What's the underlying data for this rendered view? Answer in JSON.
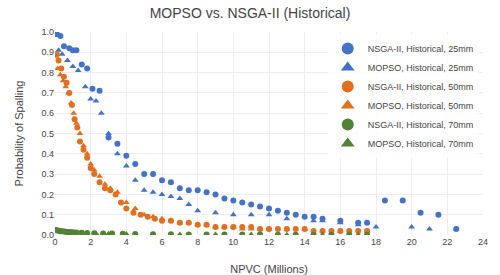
{
  "chart_data": {
    "type": "scatter",
    "title": "MOPSO vs. NSGA-II (Historical)",
    "xlabel": "NPVC (Millions)",
    "ylabel": "Probability of Spalling",
    "xlim": [
      0,
      24
    ],
    "ylim": [
      0,
      1.0
    ],
    "xticks": [
      0,
      2,
      4,
      6,
      8,
      10,
      12,
      14,
      16,
      18,
      20,
      22,
      24
    ],
    "yticks": [
      {
        "value": 0,
        "label": "0.0"
      },
      0.1,
      0.2,
      0.3,
      0.4,
      0.5,
      0.6,
      0.7,
      0.8,
      0.9,
      {
        "value": 1,
        "label": "1.0"
      }
    ],
    "grid": true,
    "legend": "upper right",
    "series": [
      {
        "name": "NSGA-II, Historical, 25mm",
        "marker": "circle",
        "color": "#4472C4",
        "x": [
          0.1,
          0.3,
          0.5,
          0.8,
          1.0,
          1.2,
          1.5,
          1.8,
          2.1,
          2.5,
          3.0,
          3.5,
          4.0,
          4.5,
          5.0,
          5.5,
          6.0,
          6.5,
          7.0,
          7.5,
          8.0,
          8.5,
          9.0,
          9.5,
          10.0,
          10.5,
          11.0,
          11.5,
          12.0,
          12.5,
          13.0,
          13.5,
          14.0,
          14.5,
          15.0,
          16.0,
          17.0,
          17.5,
          18.5,
          19.5,
          20.5,
          21.5,
          22.5
        ],
        "values": [
          0.99,
          0.98,
          0.93,
          0.92,
          0.91,
          0.91,
          0.84,
          0.82,
          0.72,
          0.71,
          0.48,
          0.45,
          0.39,
          0.35,
          0.3,
          0.3,
          0.27,
          0.26,
          0.23,
          0.22,
          0.22,
          0.21,
          0.2,
          0.18,
          0.17,
          0.16,
          0.15,
          0.14,
          0.13,
          0.12,
          0.11,
          0.1,
          0.09,
          0.09,
          0.08,
          0.07,
          0.06,
          0.06,
          0.17,
          0.17,
          0.11,
          0.1,
          0.03
        ]
      },
      {
        "name": "MOPSO, Historical, 25mm",
        "marker": "triangle-up",
        "color": "#4472C4",
        "x": [
          0.05,
          0.2,
          0.4,
          0.7,
          1.0,
          1.3,
          1.7,
          2.0,
          2.3,
          2.6,
          3.0,
          3.5,
          4.0,
          4.5,
          5.0,
          5.5,
          6.0,
          6.5,
          7.0,
          7.5,
          8.0,
          9.0,
          10.0,
          11.0,
          12.0,
          13.0,
          14.5,
          15.0,
          16.0,
          17.0,
          18.0,
          20.0,
          21.0,
          22.5
        ],
        "values": [
          0.985,
          0.91,
          0.89,
          0.86,
          0.83,
          0.81,
          0.73,
          0.67,
          0.66,
          0.6,
          0.5,
          0.4,
          0.34,
          0.27,
          0.22,
          0.21,
          0.2,
          0.19,
          0.18,
          0.15,
          0.12,
          0.11,
          0.1,
          0.1,
          0.1,
          0.08,
          0.07,
          0.07,
          0.06,
          0.05,
          0.04,
          0.04,
          0.03,
          0.03
        ]
      },
      {
        "name": "NSGA-II, Historical, 50mm",
        "marker": "circle",
        "color": "#E07020",
        "x": [
          0.1,
          0.2,
          0.35,
          0.5,
          0.65,
          0.8,
          0.95,
          1.1,
          1.25,
          1.4,
          1.6,
          1.8,
          2.0,
          2.2,
          2.5,
          2.8,
          3.1,
          3.4,
          3.7,
          4.0,
          4.4,
          4.8,
          5.2,
          5.6,
          6.0,
          6.5,
          7.0,
          7.5,
          8.0,
          8.5,
          9.0,
          9.5,
          10.0,
          10.5,
          11.0,
          11.5,
          12.0,
          12.5,
          13.0,
          13.5,
          14.0,
          14.5,
          15.0,
          15.5,
          16.0,
          16.5,
          17.0,
          17.5
        ],
        "values": [
          0.89,
          0.86,
          0.82,
          0.78,
          0.75,
          0.7,
          0.64,
          0.57,
          0.53,
          0.46,
          0.42,
          0.38,
          0.33,
          0.3,
          0.26,
          0.23,
          0.22,
          0.2,
          0.16,
          0.13,
          0.11,
          0.1,
          0.09,
          0.08,
          0.07,
          0.07,
          0.06,
          0.06,
          0.05,
          0.05,
          0.04,
          0.04,
          0.04,
          0.04,
          0.04,
          0.03,
          0.03,
          0.03,
          0.03,
          0.03,
          0.03,
          0.02,
          0.02,
          0.02,
          0.02,
          0.02,
          0.02,
          0.02
        ]
      },
      {
        "name": "MOPSO, Historical, 50mm",
        "marker": "triangle-up",
        "color": "#E07020",
        "x": [
          0.05,
          0.15,
          0.3,
          0.45,
          0.6,
          0.75,
          0.9,
          1.05,
          1.2,
          1.4,
          1.6,
          1.8,
          2.0,
          2.2,
          2.5,
          2.8,
          3.1,
          3.5,
          4.0,
          4.5,
          5.0,
          5.5,
          6.0,
          6.5,
          7.0,
          7.5,
          8.0,
          8.5,
          9.0,
          9.5,
          10.0,
          10.5,
          11.0,
          11.5,
          12.0,
          13.0,
          14.0,
          15.0,
          16.0,
          17.5
        ],
        "values": [
          0.88,
          0.82,
          0.79,
          0.76,
          0.73,
          0.7,
          0.65,
          0.6,
          0.55,
          0.5,
          0.44,
          0.4,
          0.35,
          0.32,
          0.29,
          0.25,
          0.23,
          0.21,
          0.16,
          0.13,
          0.1,
          0.09,
          0.08,
          0.07,
          0.06,
          0.06,
          0.05,
          0.05,
          0.04,
          0.04,
          0.04,
          0.03,
          0.03,
          0.03,
          0.03,
          0.03,
          0.03,
          0.02,
          0.02,
          0.02
        ]
      },
      {
        "name": "NSGA-II, Historical, 70mm",
        "marker": "circle",
        "color": "#548235",
        "x": [
          0.05,
          0.1,
          0.2,
          0.3,
          0.4,
          0.5,
          0.6,
          0.7,
          0.8,
          0.9,
          1.0,
          1.2,
          1.5,
          1.8,
          2.2,
          2.7,
          3.2,
          3.8,
          4.5,
          5.5,
          6.5,
          7.5,
          8.5,
          9.5,
          10.5,
          11.5,
          12.5,
          13.5,
          14.5,
          15.5,
          16.5,
          17.5
        ],
        "values": [
          0.025,
          0.023,
          0.021,
          0.019,
          0.018,
          0.017,
          0.016,
          0.015,
          0.014,
          0.013,
          0.013,
          0.012,
          0.011,
          0.01,
          0.009,
          0.008,
          0.007,
          0.006,
          0.005,
          0.004,
          0.004,
          0.003,
          0.003,
          0.002,
          0.002,
          0.002,
          0.001,
          0.001,
          0.001,
          0.001,
          0.001,
          0.001
        ]
      },
      {
        "name": "MOPSO, Historical, 70mm",
        "marker": "triangle-up",
        "color": "#548235",
        "x": [
          0.05,
          0.15,
          0.3,
          0.5,
          0.7,
          0.9,
          1.1,
          1.4,
          1.8,
          2.3,
          3.0,
          4.0,
          5.5,
          7.0,
          9.0,
          11.0,
          13.0,
          15.0,
          17.0
        ],
        "values": [
          0.022,
          0.02,
          0.018,
          0.016,
          0.014,
          0.013,
          0.012,
          0.01,
          0.009,
          0.007,
          0.006,
          0.005,
          0.004,
          0.003,
          0.002,
          0.002,
          0.001,
          0.001,
          0.001
        ]
      }
    ]
  }
}
